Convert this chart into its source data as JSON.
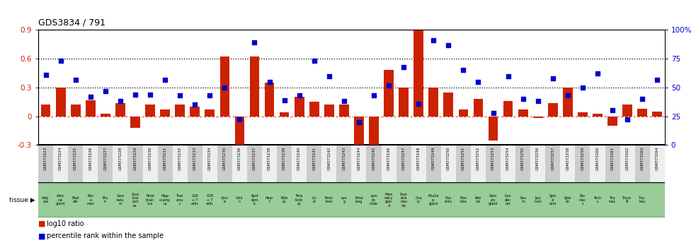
{
  "title": "GDS3834 / 791",
  "gsm_labels": [
    "GSM373223",
    "GSM373224",
    "GSM373225",
    "GSM373226",
    "GSM373227",
    "GSM373228",
    "GSM373229",
    "GSM373230",
    "GSM373231",
    "GSM373232",
    "GSM373233",
    "GSM373234",
    "GSM373235",
    "GSM373236",
    "GSM373237",
    "GSM373238",
    "GSM373239",
    "GSM373240",
    "GSM373241",
    "GSM373242",
    "GSM373243",
    "GSM373244",
    "GSM373245",
    "GSM373246",
    "GSM373247",
    "GSM373248",
    "GSM373249",
    "GSM373250",
    "GSM373251",
    "GSM373252",
    "GSM373253",
    "GSM373254",
    "GSM373255",
    "GSM373256",
    "GSM373257",
    "GSM373258",
    "GSM373259",
    "GSM373260",
    "GSM373261",
    "GSM373262",
    "GSM373263",
    "GSM373264"
  ],
  "tissue_labels": [
    "Adip\nose",
    "Adre\nnal\ngland",
    "Blad\nder",
    "Bon\ne\nmarr",
    "Bra\nin",
    "Cere\nbelu\nm",
    "Cere\nbral\ncort\nex",
    "Fetal\nbrain\noca",
    "Hipp\nocamp\nus",
    "Thal\namu\ns",
    "CD4\n+ T\ncells",
    "CD8\n+ T\ncells",
    "Cerv\nix",
    "Colo\nn",
    "Epid\ndym\nis",
    "Hear\nt",
    "Kidn\ney",
    "Feta\nlkidn\ney",
    "Liv\ner",
    "Fetal\nliver",
    "Lun\ng",
    "Fetal\nlung",
    "Lym\nph\nnode",
    "Mam\nmary\nglan\nd",
    "Sket\netal\nmus\ncle",
    "Ova\nry",
    "Pituita\nry\ngland",
    "Plac\nenta",
    "Pros\ntate",
    "Reti\nnal",
    "Saliv\nary\ngland",
    "Duo\nden\num",
    "Ileu\nm",
    "Jeju\nnum",
    "Spin\nal\ncord",
    "Sple\nen",
    "Sto\nmac\ns",
    "Testi\ns",
    "Thy\nmus",
    "Thyro\nid",
    "Trac\nhea"
  ],
  "log10_ratio": [
    0.12,
    0.3,
    0.12,
    0.17,
    0.03,
    0.14,
    -0.12,
    0.12,
    0.07,
    0.12,
    0.1,
    0.07,
    0.62,
    -0.3,
    0.62,
    0.35,
    0.04,
    0.2,
    0.15,
    0.12,
    0.12,
    -0.32,
    -0.3,
    0.48,
    0.3,
    0.92,
    0.3,
    0.25,
    0.07,
    0.18,
    -0.25,
    0.16,
    0.07,
    -0.02,
    0.14,
    0.3,
    0.04,
    0.03,
    -0.1,
    0.12,
    0.08,
    0.05
  ],
  "percentile": [
    0.61,
    0.73,
    0.57,
    0.42,
    0.47,
    0.38,
    0.44,
    0.44,
    0.57,
    0.43,
    0.35,
    0.43,
    0.5,
    0.22,
    0.89,
    0.55,
    0.39,
    0.43,
    0.73,
    0.6,
    0.38,
    0.2,
    0.43,
    0.52,
    0.68,
    0.36,
    0.91,
    0.87,
    0.65,
    0.55,
    0.28,
    0.6,
    0.4,
    0.38,
    0.58,
    0.43,
    0.5,
    0.62,
    0.3,
    0.22,
    0.4,
    0.57
  ],
  "bar_color": "#cc2200",
  "dot_color": "#0000cc",
  "ylim_left": [
    -0.3,
    0.9
  ],
  "ylim_right": [
    0,
    1.0
  ],
  "yticks_left": [
    -0.3,
    0.0,
    0.3,
    0.6,
    0.9
  ],
  "yticks_right": [
    0.0,
    0.25,
    0.5,
    0.75,
    1.0
  ],
  "ytick_left_labels": [
    "-0.3",
    "0",
    "0.3",
    "0.6",
    "0.9"
  ],
  "ytick_right_labels": [
    "0",
    "25",
    "50",
    "75",
    "100%"
  ],
  "hlines": [
    0.3,
    0.6
  ],
  "tissue_bg_color": "#99cc99",
  "gsm_bg_even": "#cccccc",
  "gsm_bg_odd": "#eeeeee"
}
